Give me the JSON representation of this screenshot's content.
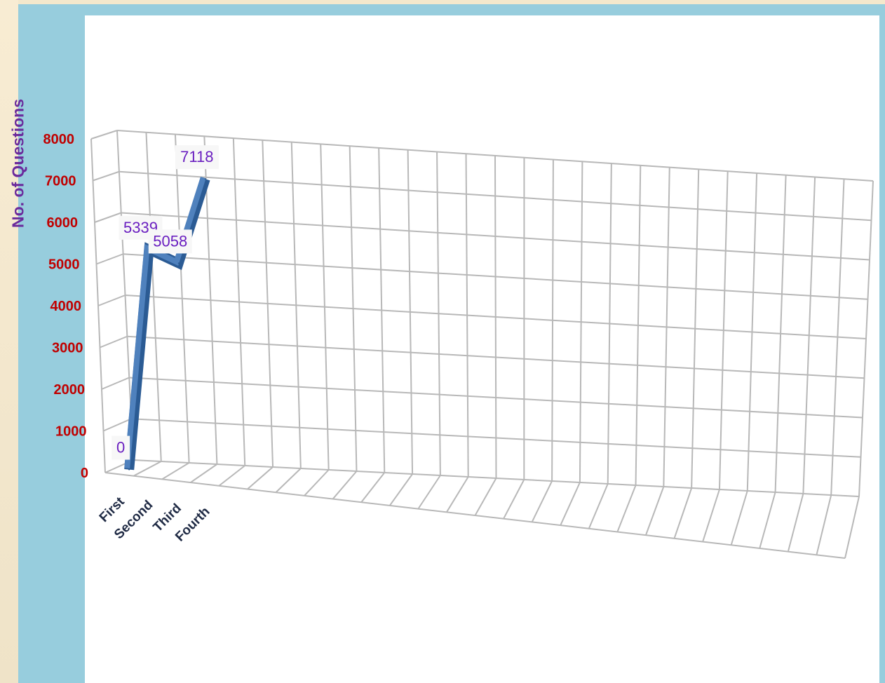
{
  "chart_data": {
    "type": "line",
    "title": "",
    "xlabel": "",
    "ylabel": "No. of Questions",
    "categories": [
      "First",
      "Second",
      "Third",
      "Fourth"
    ],
    "series": [
      {
        "values": [
          0,
          5339,
          5058,
          7118
        ]
      }
    ],
    "data_labels": [
      "0",
      "5339",
      "5058",
      "7118"
    ],
    "yticks": [
      "0",
      "1000",
      "2000",
      "3000",
      "4000",
      "5000",
      "6000",
      "7000",
      "8000"
    ],
    "ylim": [
      0,
      8000
    ],
    "grid": true,
    "legend": "none",
    "colors": {
      "line": "#4f81bd",
      "line_dark": "#2b5b94",
      "ytick": "#c00000",
      "xtick": "#1f2a44",
      "ytitle": "#6a2a9c",
      "data_label": "#6a1fc0",
      "grid": "#b8b8b8"
    }
  }
}
